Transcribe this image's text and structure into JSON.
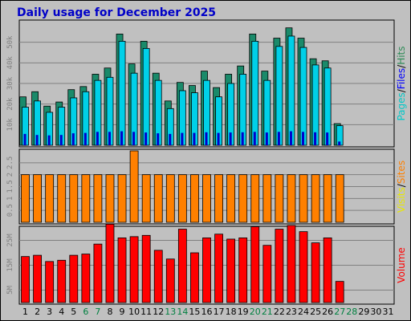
{
  "chart_data": {
    "type": "bar",
    "title": "Daily usage for December 2025",
    "x": [
      "1",
      "2",
      "3",
      "4",
      "5",
      "6",
      "7",
      "8",
      "9",
      "10",
      "11",
      "12",
      "13",
      "14",
      "15",
      "16",
      "17",
      "18",
      "19",
      "20",
      "21",
      "22",
      "23",
      "24",
      "25",
      "26",
      "27",
      "28",
      "29",
      "30",
      "31"
    ],
    "weekend_days": [
      "6",
      "7",
      "13",
      "14",
      "20",
      "21",
      "27",
      "28"
    ],
    "panels": [
      {
        "name": "hits-files-pages",
        "ylabel_parts": [
          {
            "text": "Pages",
            "color": "#00c8c8"
          },
          {
            "text": "/",
            "color": "#000000"
          },
          {
            "text": "Files",
            "color": "#0000ff"
          },
          {
            "text": "/",
            "color": "#000000"
          },
          {
            "text": "Hits",
            "color": "#2e8b57"
          }
        ],
        "ylim": [
          0,
          60000
        ],
        "yticks": [
          {
            "value": 10000,
            "label": "10k"
          },
          {
            "value": 20000,
            "label": "20k"
          },
          {
            "value": 30000,
            "label": "30k"
          },
          {
            "value": 40000,
            "label": "40k"
          },
          {
            "value": 50000,
            "label": "50k"
          }
        ],
        "series": [
          {
            "name": "Hits",
            "color": "#1a8a6a",
            "values": [
              23500,
              26000,
              19000,
              21000,
              27000,
              28500,
              34500,
              37500,
              54000,
              39500,
              50500,
              35000,
              21500,
              30500,
              29000,
              36000,
              28000,
              34500,
              38500,
              54000,
              36000,
              52000,
              57000,
              52000,
              42000,
              41000,
              10500,
              0,
              0,
              0,
              0
            ]
          },
          {
            "name": "Files",
            "color": "#00d0e8",
            "values": [
              18500,
              21500,
              16000,
              18500,
              23000,
              26000,
              31500,
              33000,
              50500,
              35000,
              47000,
              31500,
              17800,
              26500,
              25500,
              31500,
              23500,
              30000,
              34500,
              50500,
              31500,
              48000,
              53000,
              47500,
              39000,
              37500,
              9500,
              0,
              0,
              0,
              0
            ]
          },
          {
            "name": "Pages",
            "color": "#0000cc",
            "values": [
              5500,
              5000,
              4800,
              5000,
              5800,
              6000,
              6500,
              6500,
              6800,
              6500,
              6200,
              5800,
              5500,
              6000,
              6000,
              6300,
              6000,
              6200,
              6300,
              6500,
              6200,
              6500,
              6800,
              6500,
              6300,
              6200,
              1800,
              0,
              0,
              0,
              0
            ]
          }
        ]
      },
      {
        "name": "visits-sites",
        "ylabel_parts": [
          {
            "text": "Visits",
            "color": "#e8e800"
          },
          {
            "text": "/",
            "color": "#000000"
          },
          {
            "text": "Sites",
            "color": "#ff8000"
          }
        ],
        "ylim": [
          0,
          3
        ],
        "yticks": [
          {
            "value": 0.5,
            "label": "0.5"
          },
          {
            "value": 1,
            "label": "1"
          },
          {
            "value": 1.5,
            "label": "1.5"
          },
          {
            "value": 2,
            "label": "2"
          },
          {
            "value": 2.5,
            "label": "2.5"
          }
        ],
        "series": [
          {
            "name": "Sites",
            "color": "#ff8000",
            "values": [
              2,
              2,
              2,
              2,
              2,
              2,
              2,
              2,
              2,
              3,
              2,
              2,
              2,
              2,
              2,
              2,
              2,
              2,
              2,
              2,
              2,
              2,
              2,
              2,
              2,
              2,
              2,
              0,
              0,
              0,
              0
            ]
          }
        ]
      },
      {
        "name": "volume",
        "ylabel_parts": [
          {
            "text": "Volume",
            "color": "#ff0000"
          }
        ],
        "ylim": [
          0,
          30
        ],
        "yticks": [
          {
            "value": 5,
            "label": "5M"
          },
          {
            "value": 15,
            "label": "15M"
          },
          {
            "value": 25,
            "label": "25M"
          }
        ],
        "series": [
          {
            "name": "Volume",
            "color": "#ff0000",
            "values": [
              18.5,
              19.0,
              16.5,
              17.0,
              19.0,
              19.5,
              23.5,
              31.5,
              26.0,
              26.5,
              27.0,
              21.0,
              17.5,
              29.5,
              20.0,
              26.0,
              27.5,
              25.5,
              26.0,
              30.5,
              23.0,
              29.5,
              31.0,
              28.5,
              24.0,
              26.0,
              8.5,
              0,
              0,
              0,
              0
            ]
          }
        ]
      }
    ]
  }
}
